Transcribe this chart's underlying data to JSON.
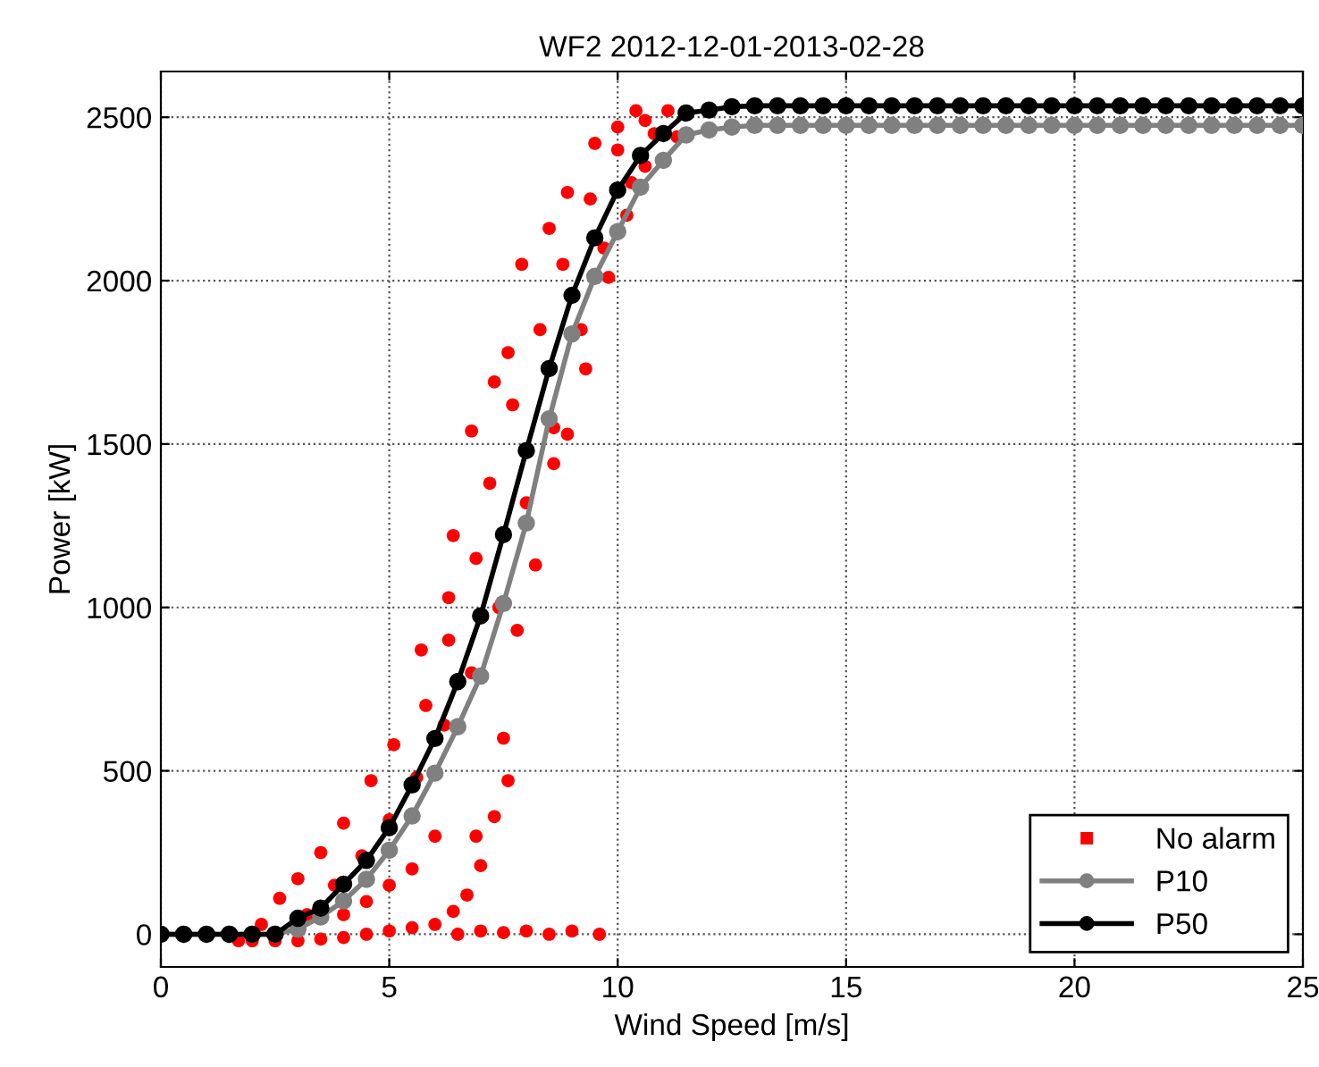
{
  "chart_data": {
    "type": "line",
    "title": "WF2 2012-12-01-2013-02-28",
    "xlabel": "Wind Speed [m/s]",
    "ylabel": "Power [kW]",
    "xlim": [
      0,
      25
    ],
    "ylim": [
      -100,
      2640
    ],
    "xticks": [
      0,
      5,
      10,
      15,
      20,
      25
    ],
    "yticks": [
      0,
      500,
      1000,
      1500,
      2000,
      2500
    ],
    "grid": true,
    "legend": "bottom right",
    "marker": "circle",
    "line_style": "solid",
    "series": [
      {
        "name": "No alarm",
        "type": "scatter",
        "color": "#ff0000",
        "x": [
          1.7,
          2.2,
          2.6,
          3.0,
          3.5,
          4.0,
          4.6,
          5.1,
          5.7,
          6.3,
          6.4,
          6.8,
          7.3,
          7.6,
          7.9,
          8.5,
          8.9,
          9.5,
          10.0,
          10.4,
          11.1,
          11.3,
          10.6,
          10.2,
          9.8,
          9.3,
          8.9,
          8.6,
          8.2,
          7.8,
          7.6,
          7.3,
          7.0,
          6.7,
          6.4,
          6.0,
          5.5,
          5.0,
          4.5,
          4.0,
          3.5,
          3.0,
          2.5,
          2.0,
          6.5,
          7.0,
          7.5,
          8.0,
          8.5,
          9.0,
          9.6,
          3.2,
          3.8,
          4.4,
          5.0,
          5.6,
          6.2,
          6.8,
          7.4,
          8.0,
          8.6,
          9.2,
          9.7,
          10.3,
          10.8,
          4.0,
          4.5,
          5.0,
          5.5,
          6.0,
          5.8,
          6.3,
          6.9,
          7.2,
          7.7,
          8.3,
          8.8,
          9.4,
          10.0,
          10.6,
          6.9,
          7.5
        ],
        "values": [
          -20,
          30,
          110,
          170,
          250,
          340,
          470,
          580,
          870,
          1030,
          1220,
          1540,
          1690,
          1780,
          2050,
          2160,
          2270,
          2420,
          2470,
          2520,
          2520,
          2440,
          2350,
          2200,
          2010,
          1730,
          1530,
          1440,
          1130,
          930,
          470,
          360,
          210,
          120,
          70,
          30,
          20,
          10,
          0,
          -10,
          -15,
          -20,
          -20,
          -20,
          0,
          10,
          5,
          10,
          0,
          10,
          0,
          60,
          150,
          240,
          350,
          480,
          640,
          800,
          1000,
          1320,
          1550,
          1850,
          2100,
          2300,
          2450,
          60,
          100,
          150,
          200,
          300,
          700,
          900,
          1150,
          1380,
          1620,
          1850,
          2050,
          2250,
          2400,
          2490,
          300,
          600
        ]
      },
      {
        "name": "P10",
        "color": "#808080",
        "x": [
          0,
          0.5,
          1,
          1.5,
          2,
          2.5,
          3,
          3.5,
          4,
          4.5,
          5,
          5.5,
          6,
          6.5,
          7,
          7.5,
          8,
          8.5,
          9,
          9.5,
          10,
          10.5,
          11,
          11.5,
          12,
          12.5,
          13,
          13.5,
          14,
          14.5,
          15,
          15.5,
          16,
          16.5,
          17,
          17.5,
          18,
          18.5,
          19,
          19.5,
          20,
          20.5,
          21,
          21.5,
          22,
          22.5,
          23,
          23.5,
          24,
          24.5,
          25
        ],
        "values": [
          0,
          0,
          0,
          0,
          0,
          0,
          16,
          53,
          102,
          168,
          257,
          362,
          493,
          635,
          790,
          1012,
          1258,
          1577,
          1837,
          2013,
          2150,
          2286,
          2368,
          2446,
          2461,
          2470,
          2475,
          2475,
          2475,
          2475,
          2475,
          2475,
          2475,
          2475,
          2475,
          2475,
          2475,
          2475,
          2475,
          2475,
          2475,
          2475,
          2475,
          2475,
          2475,
          2475,
          2475,
          2475,
          2475,
          2475,
          2475
        ]
      },
      {
        "name": "P50",
        "color": "#000000",
        "x": [
          0,
          0.5,
          1,
          1.5,
          2,
          2.5,
          3,
          3.5,
          4,
          4.5,
          5,
          5.5,
          6,
          6.5,
          7,
          7.5,
          8,
          8.5,
          9,
          9.5,
          10,
          10.5,
          11,
          11.5,
          12,
          12.5,
          13,
          13.5,
          14,
          14.5,
          15,
          15.5,
          16,
          16.5,
          17,
          17.5,
          18,
          18.5,
          19,
          19.5,
          20,
          20.5,
          21,
          21.5,
          22,
          22.5,
          23,
          23.5,
          24,
          24.5,
          25
        ],
        "values": [
          0,
          0,
          0,
          0,
          0,
          0,
          49,
          80,
          153,
          226,
          326,
          457,
          599,
          773,
          974,
          1223,
          1480,
          1731,
          1955,
          2131,
          2277,
          2383,
          2450,
          2513,
          2522,
          2532,
          2535,
          2535,
          2535,
          2535,
          2535,
          2535,
          2535,
          2535,
          2535,
          2535,
          2535,
          2535,
          2535,
          2535,
          2535,
          2535,
          2535,
          2535,
          2535,
          2535,
          2535,
          2535,
          2535,
          2535,
          2535
        ]
      }
    ]
  }
}
